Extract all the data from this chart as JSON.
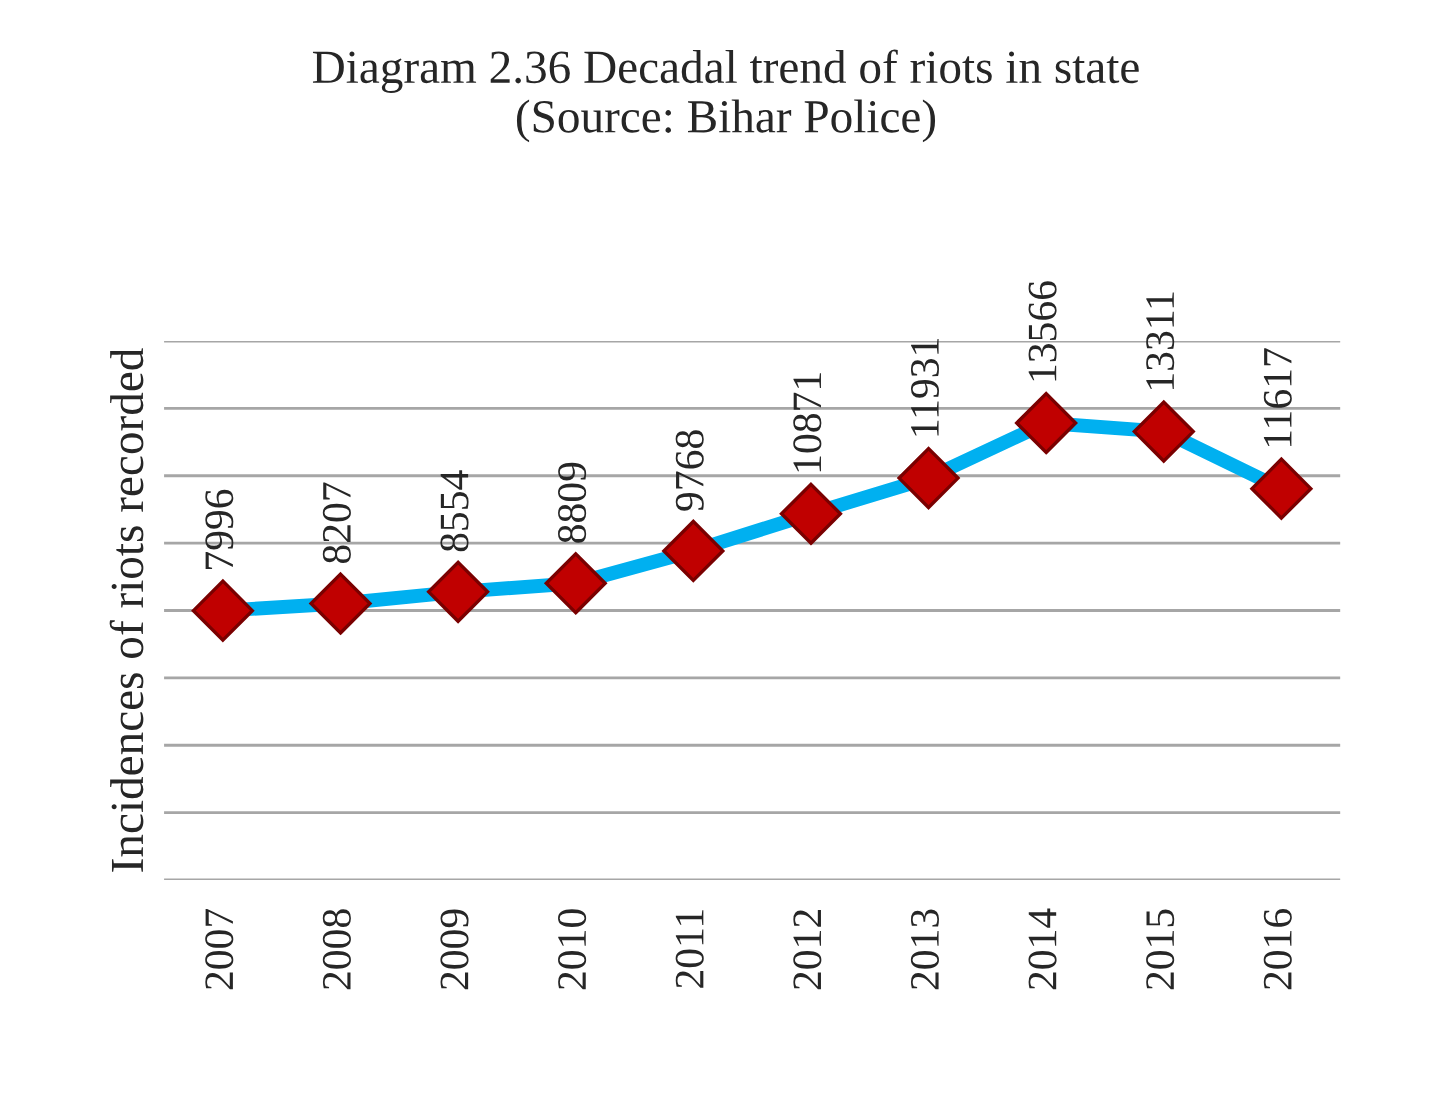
{
  "chart_data": {
    "type": "line",
    "title": "Diagram 2.36 Decadal trend of riots in state\n(Source: Bihar Police)",
    "ylabel": "Incidences of riots recorded",
    "categories": [
      "2007",
      "2008",
      "2009",
      "2010",
      "2011",
      "2012",
      "2013",
      "2014",
      "2015",
      "2016"
    ],
    "series": [
      {
        "color": "#00b0f0",
        "values": [
          7996,
          8207,
          8554,
          8809,
          9768,
          10871,
          11931,
          13566,
          13311,
          11617
        ]
      }
    ],
    "ylim": [
      0,
      16000
    ],
    "yticks": [
      {
        "value": 0,
        "label": null
      },
      {
        "value": 2000,
        "label": null
      },
      {
        "value": 4000,
        "label": null
      },
      {
        "value": 6000,
        "label": null
      },
      {
        "value": 8000,
        "label": null
      },
      {
        "value": 10000,
        "label": null
      },
      {
        "value": 12000,
        "label": null
      },
      {
        "value": 14000,
        "label": null
      },
      {
        "value": 16000,
        "label": null
      }
    ],
    "tick_labels": "x",
    "grid": "y",
    "marker": "diamond",
    "line_style": "solid",
    "data_labels": true
  }
}
